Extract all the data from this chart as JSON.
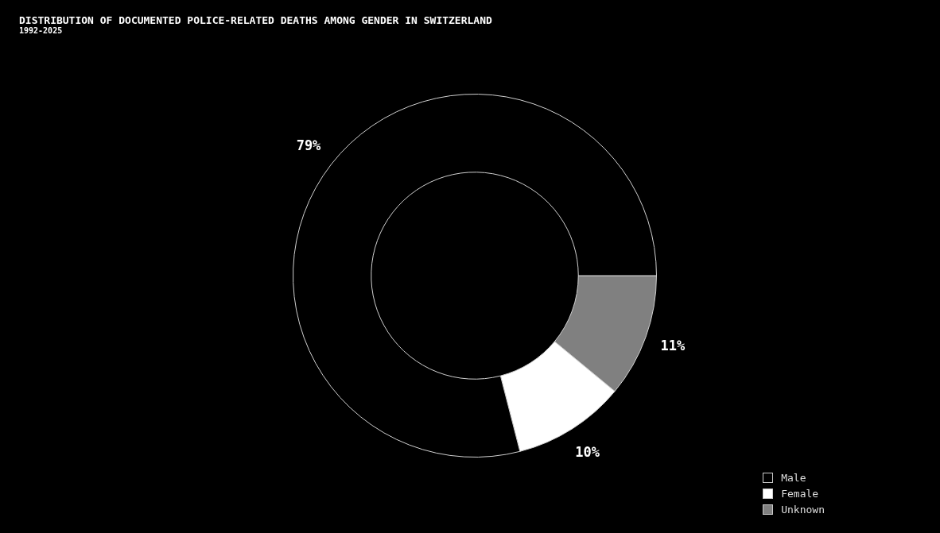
{
  "chart_data": {
    "type": "donut",
    "title": "DISTRIBUTION OF DOCUMENTED POLICE-RELATED DEATHS AMONG GENDER IN SWITZERLAND",
    "subtitle": "1992-2025",
    "categories": [
      "Male",
      "Female",
      "Unknown"
    ],
    "values": [
      79,
      10,
      11
    ],
    "colors": [
      "#000000",
      "#ffffff",
      "#808080"
    ],
    "value_labels": [
      "79%",
      "10%",
      "11%"
    ],
    "legend": "bottom right"
  }
}
